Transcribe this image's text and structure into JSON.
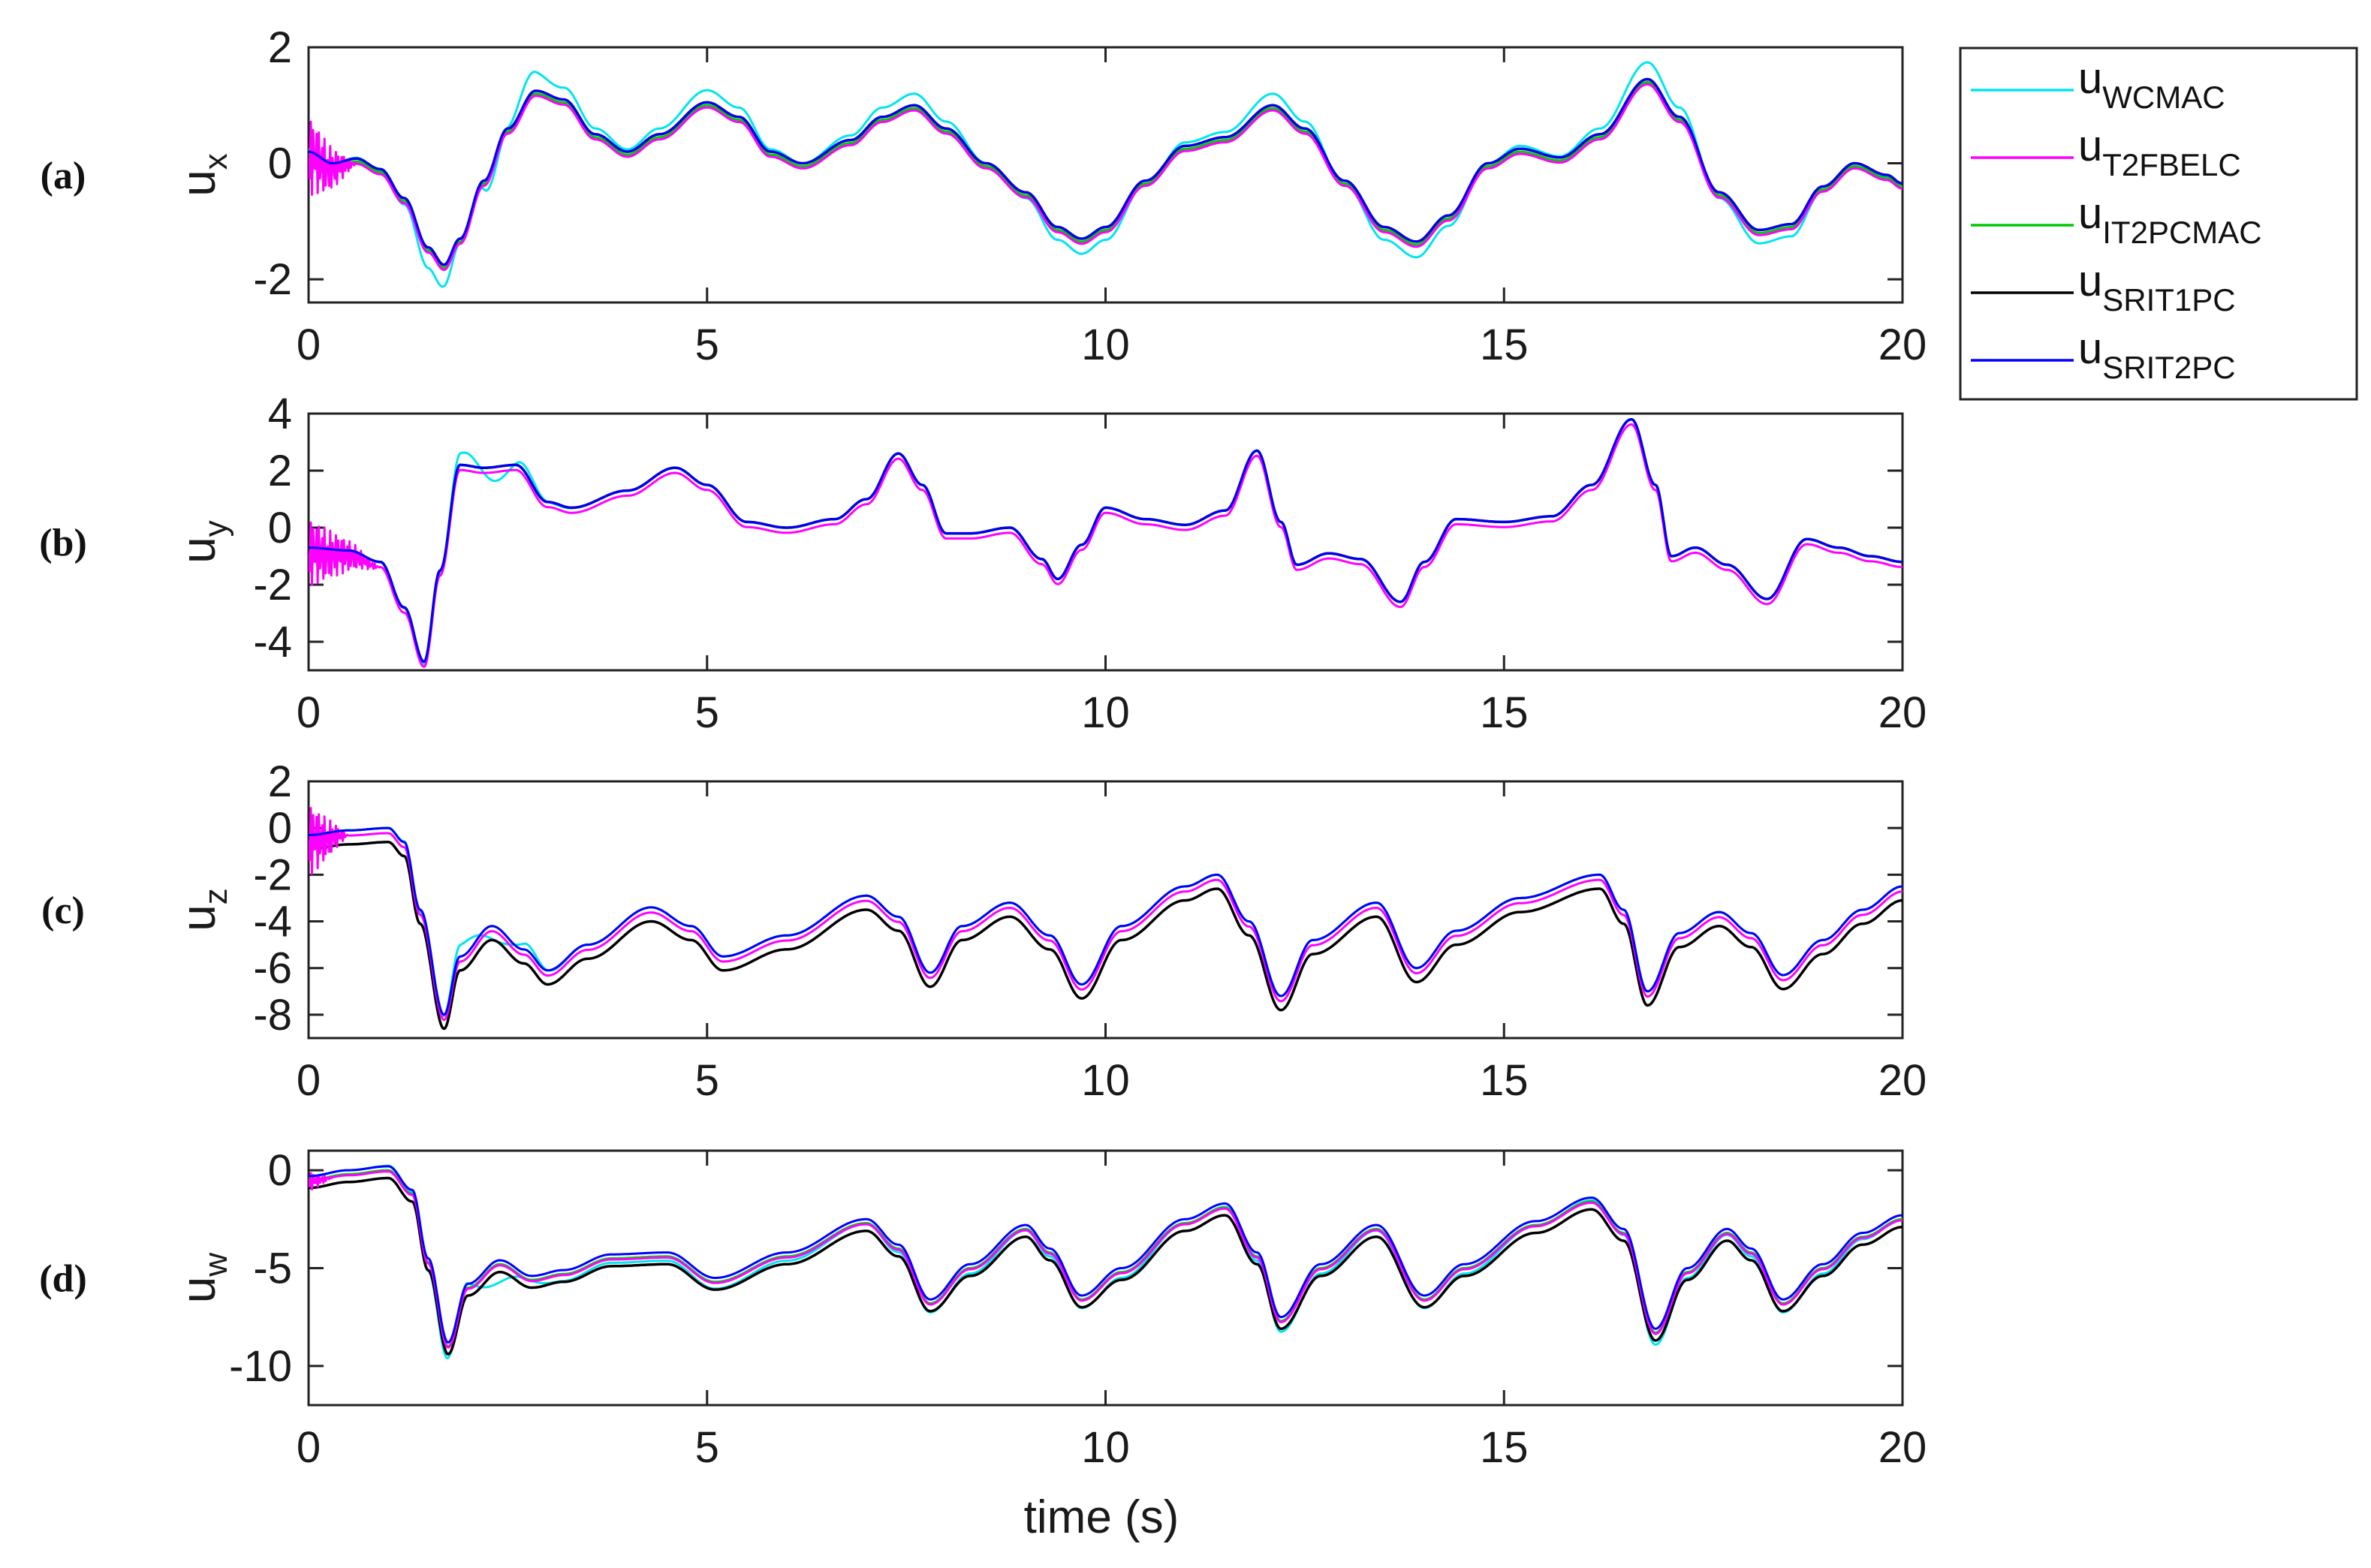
{
  "chart_data": {
    "type": "line",
    "xlabel": "time (s)",
    "xlim": [
      0,
      20
    ],
    "xticks": [
      "0",
      "5",
      "10",
      "15",
      "20"
    ],
    "legend": {
      "placement": "top-right, outside",
      "entries": [
        {
          "base": "u",
          "sub": "WCMAC",
          "color": "#00e5ee"
        },
        {
          "base": "u",
          "sub": "T2FBELC",
          "color": "#ff00ff"
        },
        {
          "base": "u",
          "sub": "IT2PCMAC",
          "color": "#00cc00"
        },
        {
          "base": "u",
          "sub": "SRIT1PC",
          "color": "#000000"
        },
        {
          "base": "u",
          "sub": "SRIT2PC",
          "color": "#0000ff"
        }
      ]
    },
    "panels": [
      {
        "label": "(a)",
        "ylabel_base": "u",
        "ylabel_sub": "x",
        "ylim": [
          -2.4,
          2
        ],
        "yticks": [
          -2,
          0,
          2
        ],
        "ytick_labels": [
          "-2",
          "0",
          "2"
        ],
        "ref": [
          [
            0,
            0.2
          ],
          [
            0.3,
            0.0
          ],
          [
            0.6,
            0.08
          ],
          [
            0.9,
            -0.1
          ],
          [
            1.2,
            -0.6
          ],
          [
            1.5,
            -1.45
          ],
          [
            1.7,
            -1.75
          ],
          [
            1.9,
            -1.3
          ],
          [
            2.2,
            -0.3
          ],
          [
            2.5,
            0.6
          ],
          [
            2.85,
            1.25
          ],
          [
            3.2,
            1.1
          ],
          [
            3.6,
            0.5
          ],
          [
            4.0,
            0.2
          ],
          [
            4.4,
            0.5
          ],
          [
            5.0,
            1.05
          ],
          [
            5.4,
            0.8
          ],
          [
            5.8,
            0.2
          ],
          [
            6.2,
            0.0
          ],
          [
            6.8,
            0.4
          ],
          [
            7.2,
            0.8
          ],
          [
            7.6,
            1.0
          ],
          [
            8.0,
            0.6
          ],
          [
            8.5,
            0.0
          ],
          [
            9.0,
            -0.5
          ],
          [
            9.4,
            -1.1
          ],
          [
            9.7,
            -1.3
          ],
          [
            10.0,
            -1.1
          ],
          [
            10.5,
            -0.3
          ],
          [
            11.0,
            0.3
          ],
          [
            11.5,
            0.45
          ],
          [
            12.1,
            1.0
          ],
          [
            12.5,
            0.6
          ],
          [
            13.0,
            -0.3
          ],
          [
            13.5,
            -1.1
          ],
          [
            13.9,
            -1.35
          ],
          [
            14.3,
            -0.9
          ],
          [
            14.8,
            0.0
          ],
          [
            15.2,
            0.25
          ],
          [
            15.7,
            0.1
          ],
          [
            16.2,
            0.5
          ],
          [
            16.8,
            1.45
          ],
          [
            17.2,
            0.8
          ],
          [
            17.7,
            -0.5
          ],
          [
            18.2,
            -1.15
          ],
          [
            18.6,
            -1.05
          ],
          [
            19.0,
            -0.4
          ],
          [
            19.4,
            0.0
          ],
          [
            19.8,
            -0.2
          ],
          [
            20,
            -0.35
          ]
        ],
        "wcmac_amp": 1.2,
        "shift": {
          "black": 0.0,
          "green": -0.05,
          "blue": 0.0
        },
        "osc": {
          "amp": 0.7,
          "end": 0.6
        }
      },
      {
        "label": "(b)",
        "ylabel_base": "u",
        "ylabel_sub": "y",
        "ylim": [
          -5,
          4
        ],
        "yticks": [
          -4,
          -2,
          0,
          2,
          4
        ],
        "ytick_labels": [
          "-4",
          "-2",
          "0",
          "2",
          "4"
        ],
        "ref": [
          [
            0,
            -0.7
          ],
          [
            0.5,
            -0.8
          ],
          [
            0.9,
            -1.2
          ],
          [
            1.2,
            -2.8
          ],
          [
            1.45,
            -4.7
          ],
          [
            1.65,
            -1.5
          ],
          [
            1.9,
            2.2
          ],
          [
            2.2,
            2.1
          ],
          [
            2.6,
            2.2
          ],
          [
            3.0,
            0.9
          ],
          [
            3.3,
            0.7
          ],
          [
            4.0,
            1.3
          ],
          [
            4.6,
            2.1
          ],
          [
            5.0,
            1.5
          ],
          [
            5.5,
            0.2
          ],
          [
            6.0,
            0.0
          ],
          [
            6.6,
            0.3
          ],
          [
            7.0,
            1.0
          ],
          [
            7.4,
            2.6
          ],
          [
            7.7,
            1.5
          ],
          [
            8.0,
            -0.2
          ],
          [
            8.3,
            -0.2
          ],
          [
            8.8,
            0.0
          ],
          [
            9.2,
            -1.1
          ],
          [
            9.4,
            -1.8
          ],
          [
            9.7,
            -0.6
          ],
          [
            10.0,
            0.7
          ],
          [
            10.5,
            0.3
          ],
          [
            11.0,
            0.1
          ],
          [
            11.5,
            0.6
          ],
          [
            11.9,
            2.7
          ],
          [
            12.2,
            0.2
          ],
          [
            12.4,
            -1.3
          ],
          [
            12.8,
            -0.9
          ],
          [
            13.2,
            -1.1
          ],
          [
            13.7,
            -2.6
          ],
          [
            14.0,
            -1.2
          ],
          [
            14.4,
            0.3
          ],
          [
            15.0,
            0.2
          ],
          [
            15.6,
            0.4
          ],
          [
            16.1,
            1.5
          ],
          [
            16.6,
            3.8
          ],
          [
            16.9,
            1.5
          ],
          [
            17.1,
            -1.0
          ],
          [
            17.4,
            -0.7
          ],
          [
            17.8,
            -1.3
          ],
          [
            18.3,
            -2.5
          ],
          [
            18.8,
            -0.4
          ],
          [
            19.2,
            -0.7
          ],
          [
            19.6,
            -1.0
          ],
          [
            20,
            -1.2
          ]
        ],
        "wcmac_amp": 1.0,
        "shift": {
          "black": 0.0,
          "green": 0.0,
          "blue": 0.0
        },
        "osc": {
          "amp": 1.2,
          "end": 0.9
        }
      },
      {
        "label": "(c)",
        "ylabel_base": "u",
        "ylabel_sub": "z",
        "ylim": [
          -9,
          2
        ],
        "yticks": [
          -8,
          -6,
          -4,
          -2,
          0,
          2
        ],
        "ytick_labels": [
          "-8",
          "-6",
          "-4",
          "-2",
          "0",
          "2"
        ],
        "ref": [
          [
            0,
            -0.3
          ],
          [
            0.5,
            -0.1
          ],
          [
            1.0,
            0.0
          ],
          [
            1.2,
            -0.6
          ],
          [
            1.4,
            -3.5
          ],
          [
            1.7,
            -8.0
          ],
          [
            1.9,
            -5.5
          ],
          [
            2.3,
            -4.2
          ],
          [
            2.7,
            -5.2
          ],
          [
            3.0,
            -6.1
          ],
          [
            3.5,
            -5.0
          ],
          [
            4.3,
            -3.4
          ],
          [
            4.8,
            -4.2
          ],
          [
            5.2,
            -5.5
          ],
          [
            6.0,
            -4.6
          ],
          [
            7.0,
            -2.9
          ],
          [
            7.4,
            -3.8
          ],
          [
            7.8,
            -6.2
          ],
          [
            8.2,
            -4.2
          ],
          [
            8.8,
            -3.2
          ],
          [
            9.3,
            -4.6
          ],
          [
            9.7,
            -6.7
          ],
          [
            10.2,
            -4.2
          ],
          [
            11.0,
            -2.5
          ],
          [
            11.4,
            -2.0
          ],
          [
            11.8,
            -4.0
          ],
          [
            12.2,
            -7.2
          ],
          [
            12.6,
            -4.8
          ],
          [
            13.4,
            -3.2
          ],
          [
            13.9,
            -6.0
          ],
          [
            14.4,
            -4.4
          ],
          [
            15.2,
            -3.0
          ],
          [
            16.2,
            -2.0
          ],
          [
            16.5,
            -3.5
          ],
          [
            16.8,
            -7.0
          ],
          [
            17.2,
            -4.5
          ],
          [
            17.7,
            -3.6
          ],
          [
            18.1,
            -4.5
          ],
          [
            18.5,
            -6.3
          ],
          [
            19.0,
            -4.8
          ],
          [
            19.5,
            -3.5
          ],
          [
            20,
            -2.5
          ]
        ],
        "wcmac_amp": 1.0,
        "shift": {
          "black": -0.6,
          "green": 0.0,
          "blue": 0.0
        },
        "osc": {
          "amp": 1.6,
          "end": 0.5
        }
      },
      {
        "label": "(d)",
        "ylabel_base": "u",
        "ylabel_sub": "w",
        "ylim": [
          -12,
          1
        ],
        "yticks": [
          -10,
          -5,
          0
        ],
        "ytick_labels": [
          "-10",
          "-5",
          "0"
        ],
        "ref": [
          [
            0,
            -0.3
          ],
          [
            0.5,
            0.0
          ],
          [
            1.0,
            0.2
          ],
          [
            1.3,
            -1.0
          ],
          [
            1.5,
            -4.5
          ],
          [
            1.75,
            -8.8
          ],
          [
            2.0,
            -5.8
          ],
          [
            2.4,
            -4.6
          ],
          [
            2.8,
            -5.4
          ],
          [
            3.2,
            -5.1
          ],
          [
            3.8,
            -4.3
          ],
          [
            4.5,
            -4.2
          ],
          [
            5.1,
            -5.5
          ],
          [
            6.0,
            -4.2
          ],
          [
            7.0,
            -2.5
          ],
          [
            7.4,
            -3.8
          ],
          [
            7.8,
            -6.6
          ],
          [
            8.3,
            -4.8
          ],
          [
            9.0,
            -2.8
          ],
          [
            9.3,
            -4.0
          ],
          [
            9.7,
            -6.4
          ],
          [
            10.2,
            -5.0
          ],
          [
            11.0,
            -2.5
          ],
          [
            11.5,
            -1.7
          ],
          [
            11.9,
            -4.2
          ],
          [
            12.2,
            -7.5
          ],
          [
            12.7,
            -4.8
          ],
          [
            13.4,
            -2.8
          ],
          [
            14.0,
            -6.4
          ],
          [
            14.5,
            -4.8
          ],
          [
            15.4,
            -2.6
          ],
          [
            16.1,
            -1.4
          ],
          [
            16.5,
            -3.0
          ],
          [
            16.9,
            -8.1
          ],
          [
            17.3,
            -5.0
          ],
          [
            17.8,
            -3.0
          ],
          [
            18.1,
            -4.0
          ],
          [
            18.5,
            -6.6
          ],
          [
            19.0,
            -4.8
          ],
          [
            19.5,
            -3.2
          ],
          [
            20,
            -2.3
          ]
        ],
        "wcmac_amp": 1.1,
        "shift": {
          "black": -0.6,
          "green": -0.2,
          "blue": 0.0
        },
        "osc": {
          "amp": 0.5,
          "end": 0.3
        }
      }
    ]
  }
}
